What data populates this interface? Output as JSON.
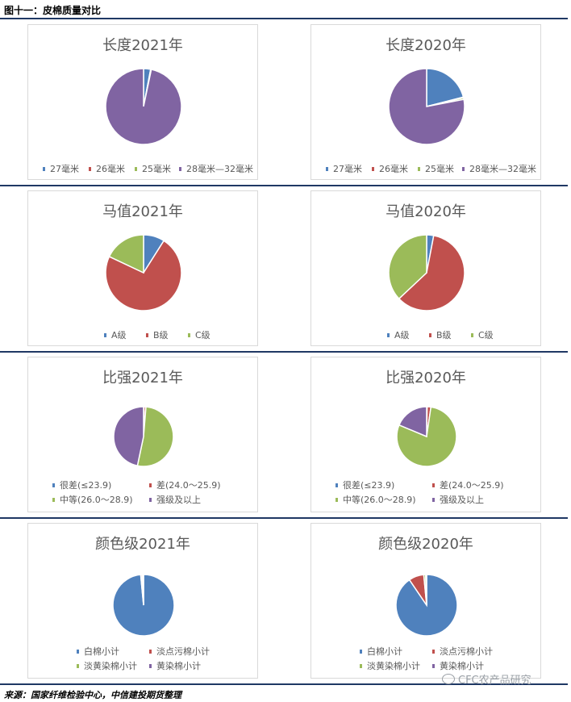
{
  "figure_title": "图十一：皮棉质量对比",
  "source": "来源：国家纤维检验中心，中信建投期货整理",
  "watermark": "CFC农产品研究",
  "watermark_icon": "wechat-icon",
  "chart_data": [
    {
      "type": "pie",
      "title": "长度2021年",
      "categories": [
        "27毫米",
        "26毫米",
        "25毫米",
        "28毫米—32毫米"
      ],
      "colors": [
        "#4f81bd",
        "#c0504d",
        "#9bbb59",
        "#8064a2"
      ],
      "values": [
        3,
        0.3,
        0,
        96.7
      ],
      "legend": "bottom"
    },
    {
      "type": "pie",
      "title": "长度2020年",
      "categories": [
        "27毫米",
        "26毫米",
        "25毫米",
        "28毫米—32毫米"
      ],
      "colors": [
        "#4f81bd",
        "#c0504d",
        "#9bbb59",
        "#8064a2"
      ],
      "values": [
        21,
        0.3,
        0.7,
        78
      ],
      "legend": "bottom"
    },
    {
      "type": "pie",
      "title": "马值2021年",
      "categories": [
        "A级",
        "B级",
        "C级"
      ],
      "colors": [
        "#4f81bd",
        "#c0504d",
        "#9bbb59"
      ],
      "values": [
        9,
        73,
        18
      ],
      "legend": "bottom"
    },
    {
      "type": "pie",
      "title": "马值2020年",
      "categories": [
        "A级",
        "B级",
        "C级"
      ],
      "colors": [
        "#4f81bd",
        "#c0504d",
        "#9bbb59"
      ],
      "values": [
        3,
        60,
        37
      ],
      "legend": "bottom"
    },
    {
      "type": "pie",
      "title": "比强2021年",
      "categories": [
        "很差(≤23.9)",
        "差(24.0～25.9)",
        "中等(26.0～28.9)",
        "强级及以上"
      ],
      "colors": [
        "#4f81bd",
        "#c0504d",
        "#9bbb59",
        "#8064a2"
      ],
      "values": [
        0.3,
        1,
        52,
        46.7
      ],
      "legend": "bottom"
    },
    {
      "type": "pie",
      "title": "比强2020年",
      "categories": [
        "很差(≤23.9)",
        "差(24.0～25.9)",
        "中等(26.0～28.9)",
        "强级及以上"
      ],
      "colors": [
        "#4f81bd",
        "#c0504d",
        "#9bbb59",
        "#8064a2"
      ],
      "values": [
        0.3,
        2,
        79,
        18.7
      ],
      "legend": "bottom"
    },
    {
      "type": "pie",
      "title": "颜色级2021年",
      "categories": [
        "白棉小计",
        "淡点污棉小计",
        "淡黄染棉小计",
        "黄染棉小计"
      ],
      "colors": [
        "#4f81bd",
        "#c0504d",
        "#9bbb59",
        "#8064a2"
      ],
      "values": [
        98.5,
        0.7,
        0.6,
        0.2
      ],
      "legend": "bottom"
    },
    {
      "type": "pie",
      "title": "颜色级2020年",
      "categories": [
        "白棉小计",
        "淡点污棉小计",
        "淡黄染棉小计",
        "黄染棉小计"
      ],
      "colors": [
        "#4f81bd",
        "#c0504d",
        "#9bbb59",
        "#8064a2"
      ],
      "values": [
        90.5,
        8,
        1,
        0.5
      ],
      "legend": "bottom"
    }
  ]
}
